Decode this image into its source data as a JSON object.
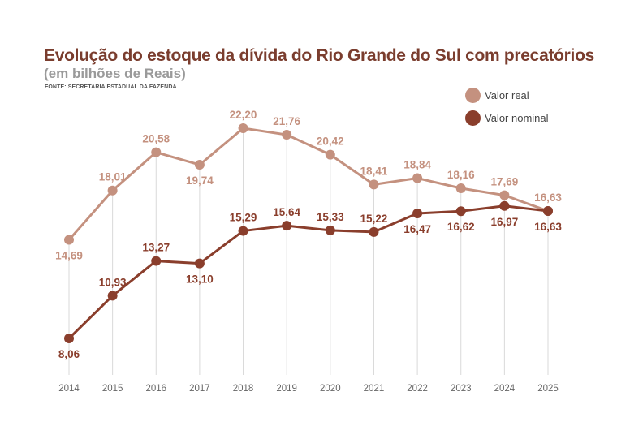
{
  "chart_data": {
    "type": "line",
    "title": "Evolução do estoque da dívida do Rio Grande do Sul com precatórios",
    "subtitle": "(em bilhões de Reais)",
    "source": "FONTE: SECRETARIA ESTADUAL DA FAZENDA",
    "xlabel": "",
    "ylabel": "",
    "x": [
      "2014",
      "2015",
      "2016",
      "2017",
      "2018",
      "2019",
      "2020",
      "2021",
      "2022",
      "2023",
      "2024",
      "2025"
    ],
    "series": [
      {
        "name": "Valor real",
        "color": "#c4917f",
        "values": [
          14.69,
          18.01,
          20.58,
          19.74,
          22.2,
          21.76,
          20.42,
          18.41,
          18.84,
          18.16,
          17.69,
          16.63
        ],
        "labels": [
          "14,69",
          "18,01",
          "20,58",
          "19,74",
          "22,20",
          "21,76",
          "20,42",
          "18,41",
          "18,84",
          "18,16",
          "17,69",
          "16,63"
        ],
        "label_positions": [
          "below",
          "above",
          "above",
          "below",
          "above",
          "above",
          "above",
          "above",
          "above",
          "above",
          "above",
          "above"
        ]
      },
      {
        "name": "Valor nominal",
        "color": "#8a3e2c",
        "values": [
          8.06,
          10.93,
          13.27,
          13.1,
          15.29,
          15.64,
          15.33,
          15.22,
          16.47,
          16.62,
          16.97,
          16.63
        ],
        "labels": [
          "8,06",
          "10,93",
          "13,27",
          "13,10",
          "15,29",
          "15,64",
          "15,33",
          "15,22",
          "16,47",
          "16,62",
          "16,97",
          "16,63"
        ],
        "label_positions": [
          "below",
          "above",
          "above",
          "below",
          "above",
          "above",
          "above",
          "above",
          "below",
          "below",
          "below",
          "below"
        ]
      }
    ],
    "ylim": [
      8.06,
      22.2
    ],
    "grid": "vertical",
    "legend": "top-right"
  }
}
